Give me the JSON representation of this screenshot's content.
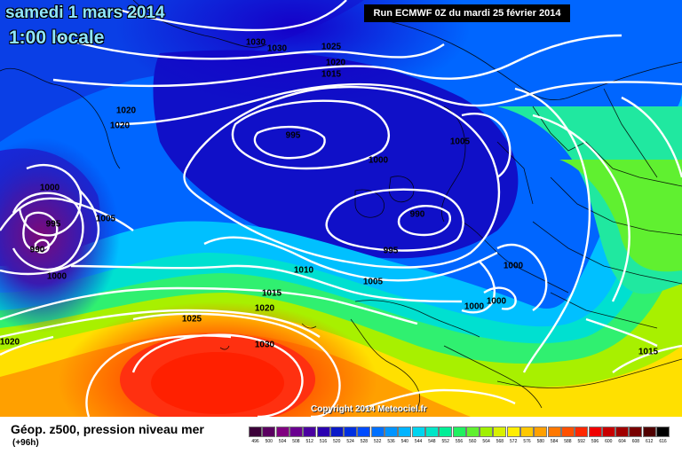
{
  "header": {
    "date_title": "samedi 1 mars 2014",
    "time_title": "1:00 locale",
    "run_info": "Run ECMWF 0Z du mardi 25 février 2014"
  },
  "copyright": "Copyright 2014 Meteociel.fr",
  "footer": {
    "title": "Géop. z500, pression niveau mer",
    "forecast_hour": "(+96h)"
  },
  "isobar_labels": [
    {
      "text": "1030"
    },
    {
      "text": "1030"
    },
    {
      "text": "1025"
    },
    {
      "text": "1020"
    },
    {
      "text": "1015"
    },
    {
      "text": "1020"
    },
    {
      "text": "1020"
    },
    {
      "text": "995"
    },
    {
      "text": "1005"
    },
    {
      "text": "1000"
    },
    {
      "text": "1000"
    },
    {
      "text": "995"
    },
    {
      "text": "990"
    },
    {
      "text": "1005"
    },
    {
      "text": "990"
    },
    {
      "text": "995"
    },
    {
      "text": "1000"
    },
    {
      "text": "1010"
    },
    {
      "text": "1005"
    },
    {
      "text": "1000"
    },
    {
      "text": "1000"
    },
    {
      "text": "1000"
    },
    {
      "text": "1015"
    },
    {
      "text": "1020"
    },
    {
      "text": "1025"
    },
    {
      "text": "1030"
    },
    {
      "text": "1020"
    },
    {
      "text": "1015"
    }
  ],
  "color_scale": [
    {
      "value": "496",
      "color": "#3b0038"
    },
    {
      "value": "500",
      "color": "#5a0060"
    },
    {
      "value": "504",
      "color": "#800080"
    },
    {
      "value": "508",
      "color": "#6a0090"
    },
    {
      "value": "512",
      "color": "#4a00a0"
    },
    {
      "value": "516",
      "color": "#2a00b0"
    },
    {
      "value": "520",
      "color": "#0a1ac8"
    },
    {
      "value": "524",
      "color": "#0030e0"
    },
    {
      "value": "528",
      "color": "#004cff"
    },
    {
      "value": "532",
      "color": "#0070ff"
    },
    {
      "value": "536",
      "color": "#0094ff"
    },
    {
      "value": "540",
      "color": "#00b4ff"
    },
    {
      "value": "544",
      "color": "#00d4f0"
    },
    {
      "value": "548",
      "color": "#00e6c8"
    },
    {
      "value": "552",
      "color": "#00ee96"
    },
    {
      "value": "556",
      "color": "#20f060"
    },
    {
      "value": "560",
      "color": "#60f030"
    },
    {
      "value": "564",
      "color": "#a0f000"
    },
    {
      "value": "568",
      "color": "#d8f000"
    },
    {
      "value": "572",
      "color": "#ffee00"
    },
    {
      "value": "576",
      "color": "#ffc800"
    },
    {
      "value": "580",
      "color": "#ffa000"
    },
    {
      "value": "584",
      "color": "#ff7800"
    },
    {
      "value": "588",
      "color": "#ff5000"
    },
    {
      "value": "592",
      "color": "#ff2800"
    },
    {
      "value": "596",
      "color": "#f00000"
    },
    {
      "value": "600",
      "color": "#c80000"
    },
    {
      "value": "604",
      "color": "#a00000"
    },
    {
      "value": "608",
      "color": "#780000"
    },
    {
      "value": "612",
      "color": "#500000"
    },
    {
      "value": "616",
      "color": "#000000"
    }
  ],
  "colors": {
    "title_text": "#8fe6ff",
    "isobar": "#ffffff",
    "coastline": "#000000"
  }
}
